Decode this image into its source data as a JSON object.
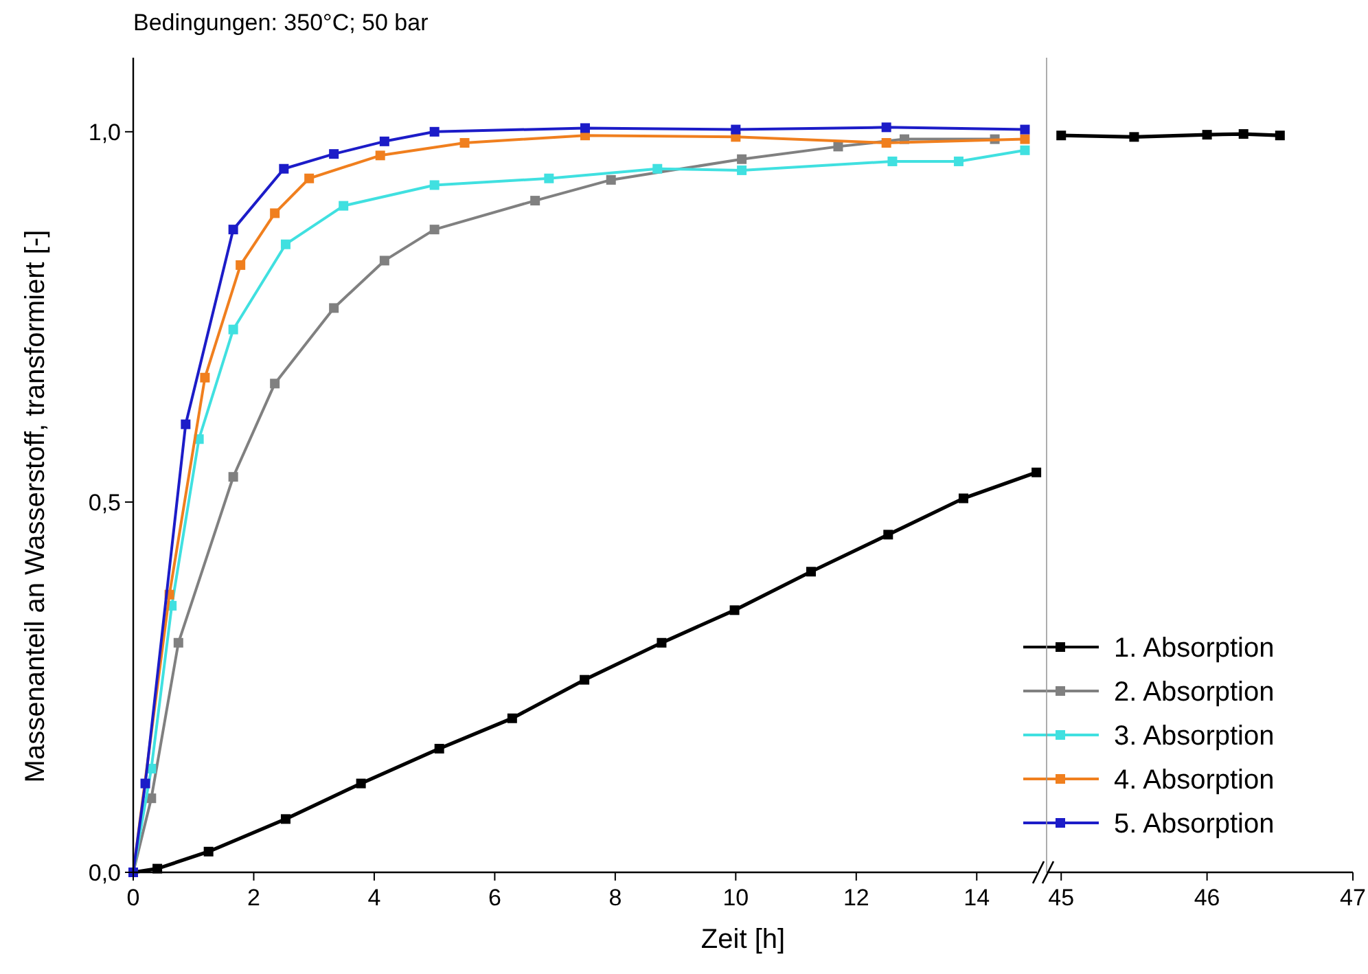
{
  "chart_data": [
    {
      "type": "line",
      "title": "Bedingungen: 350°C; 50 bar",
      "xlabel": "Zeit [h]",
      "ylabel": "Massenanteil an Wasserstoff, transformiert [-]",
      "xlim": [
        0,
        15
      ],
      "xticks": [
        0,
        2,
        4,
        6,
        8,
        10,
        12,
        14
      ],
      "ylim": [
        0,
        1.1
      ],
      "yticks": [
        {
          "value": 0,
          "label": "0,0"
        },
        {
          "value": 0.5,
          "label": "0,5"
        },
        {
          "value": 1,
          "label": "1,0"
        }
      ],
      "marker": "square",
      "legend": "bottom right",
      "grid": false,
      "series": [
        {
          "name": "1. Absorption",
          "color": "#000000",
          "x": [
            0,
            0.4,
            1.25,
            2.53,
            3.78,
            5.08,
            6.29,
            7.49,
            8.77,
            9.98,
            11.25,
            12.53,
            13.78,
            14.99
          ],
          "values": [
            0,
            0.005,
            0.028,
            0.072,
            0.12,
            0.167,
            0.208,
            0.26,
            0.31,
            0.354,
            0.406,
            0.456,
            0.505,
            0.54
          ]
        },
        {
          "name": "2. Absorption",
          "color": "#808080",
          "x": [
            0,
            0.3,
            0.75,
            1.66,
            2.35,
            3.33,
            4.17,
            5.0,
            6.67,
            7.93,
            10.1,
            11.7,
            12.8,
            14.3
          ],
          "values": [
            0,
            0.1,
            0.31,
            0.534,
            0.66,
            0.762,
            0.826,
            0.868,
            0.907,
            0.935,
            0.963,
            0.98,
            0.99,
            0.99
          ]
        },
        {
          "name": "3. Absorption",
          "color": "#40e0e0",
          "x": [
            0,
            0.3,
            0.64,
            1.09,
            1.66,
            2.53,
            3.49,
            5.0,
            6.9,
            8.7,
            10.1,
            12.6,
            13.7,
            14.8
          ],
          "values": [
            0,
            0.14,
            0.36,
            0.585,
            0.733,
            0.848,
            0.9,
            0.928,
            0.937,
            0.95,
            0.948,
            0.96,
            0.96,
            0.975
          ]
        },
        {
          "name": "4. Absorption",
          "color": "#f07f1e",
          "x": [
            0,
            0.6,
            1.19,
            1.78,
            2.35,
            2.92,
            4.1,
            5.5,
            7.5,
            10.0,
            12.5,
            14.8
          ],
          "values": [
            0,
            0.375,
            0.668,
            0.82,
            0.89,
            0.937,
            0.968,
            0.985,
            0.995,
            0.993,
            0.985,
            0.99
          ]
        },
        {
          "name": "5. Absorption",
          "color": "#1c1cc8",
          "x": [
            0,
            0.2,
            0.87,
            1.66,
            2.5,
            3.33,
            4.17,
            5.0,
            7.5,
            10.0,
            12.5,
            14.8
          ],
          "values": [
            0,
            0.12,
            0.605,
            0.868,
            0.95,
            0.97,
            0.987,
            1.0,
            1.005,
            1.003,
            1.006,
            1.003
          ]
        }
      ]
    },
    {
      "type": "line",
      "xlim": [
        44.9,
        47
      ],
      "xticks": [
        45,
        46,
        47
      ],
      "ylim": [
        0,
        1.1
      ],
      "tick_labels": "x",
      "marker": "square",
      "series": [
        {
          "color": "#000000",
          "x": [
            45,
            45.5,
            46,
            46.25,
            46.5
          ],
          "values": [
            0.995,
            0.993,
            0.996,
            0.997,
            0.995
          ]
        }
      ]
    }
  ]
}
